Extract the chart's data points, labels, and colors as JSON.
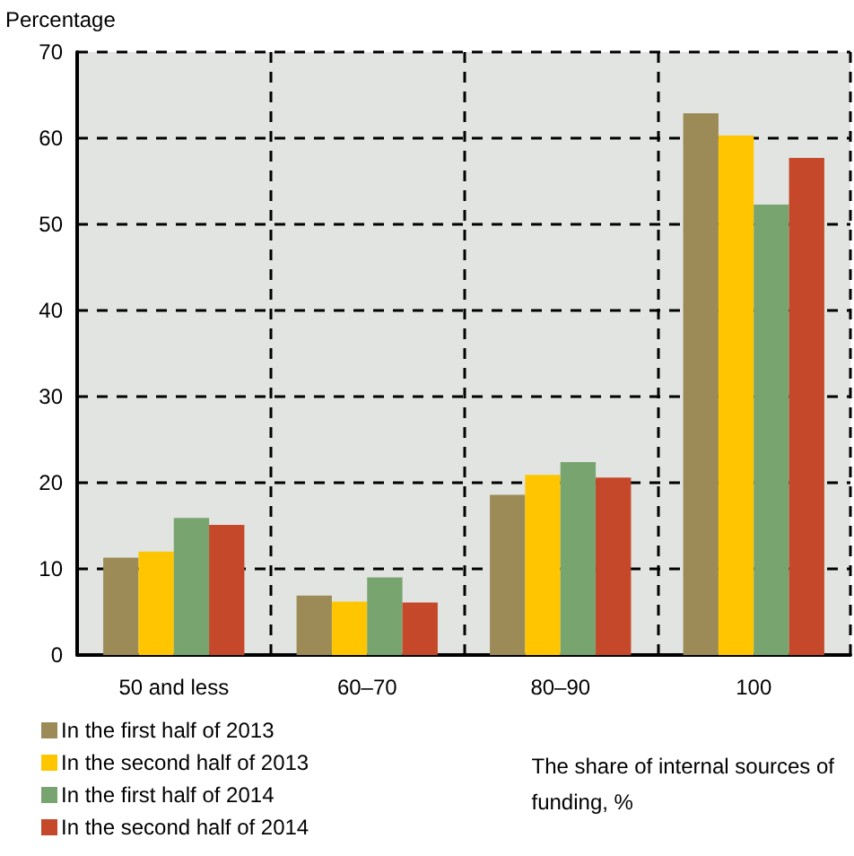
{
  "chart_data": {
    "type": "bar",
    "ylabel": "Percentage",
    "xlabel": "The share of internal sources of funding, %",
    "categories": [
      "50 and less",
      "60–70",
      "80–90",
      "100"
    ],
    "series": [
      {
        "name": "In the first half of 2013",
        "color": "#9c8a57",
        "values": [
          11.3,
          6.9,
          18.6,
          62.9
        ]
      },
      {
        "name": "In the second half of 2013",
        "color": "#ffc600",
        "values": [
          12.0,
          6.2,
          20.9,
          60.3
        ]
      },
      {
        "name": "In the first half of 2014",
        "color": "#78a470",
        "values": [
          15.9,
          9.0,
          22.4,
          52.3
        ]
      },
      {
        "name": "In the second half of 2014",
        "color": "#c44829",
        "values": [
          15.1,
          6.1,
          20.6,
          57.7
        ]
      }
    ],
    "ylim": [
      0,
      70
    ],
    "yticks": [
      0,
      10,
      20,
      30,
      40,
      50,
      60,
      70
    ],
    "grid": true,
    "legend": "bottom left"
  }
}
